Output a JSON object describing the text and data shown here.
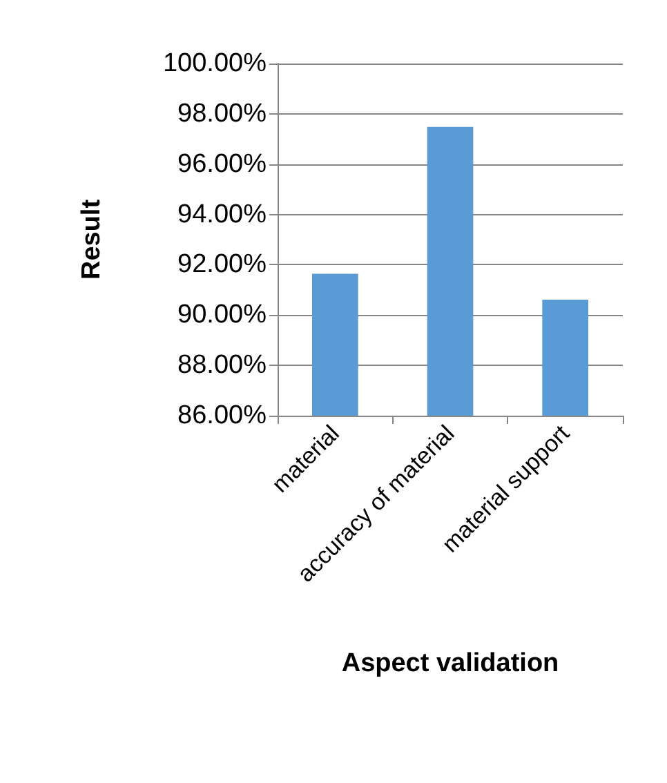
{
  "chart_data": {
    "type": "bar",
    "xlabel": "Aspect validation",
    "ylabel": "Result",
    "categories": [
      "material",
      "accuracy of material",
      "material support"
    ],
    "values": [
      91.64,
      97.48,
      90.61
    ],
    "color": "#5b9bd5",
    "ylim": [
      86,
      100
    ],
    "yticks": [
      {
        "value": 86,
        "label": "86.00%"
      },
      {
        "value": 88,
        "label": "88.00%"
      },
      {
        "value": 90,
        "label": "90.00%"
      },
      {
        "value": 92,
        "label": "92.00%"
      },
      {
        "value": 94,
        "label": "94.00%"
      },
      {
        "value": 96,
        "label": "96.00%"
      },
      {
        "value": 98,
        "label": "98.00%"
      },
      {
        "value": 100,
        "label": "100.00%"
      }
    ],
    "grid": "y"
  }
}
